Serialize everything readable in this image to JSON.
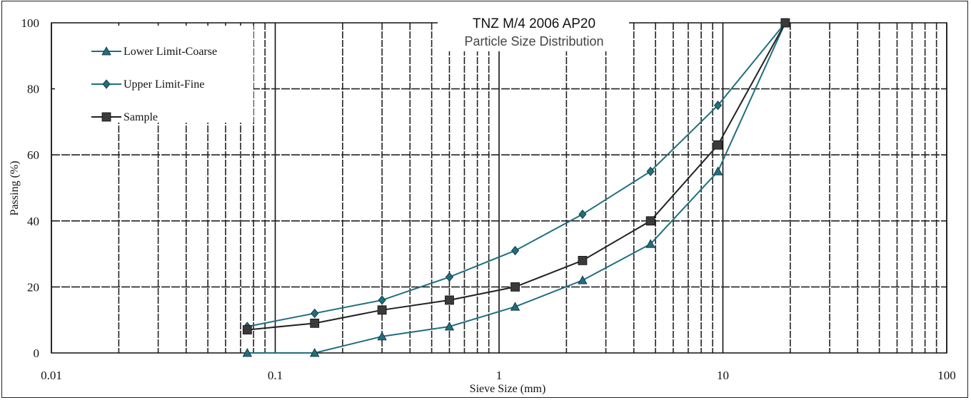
{
  "chart_data": {
    "type": "line",
    "title": "TNZ M/4 2006 AP20",
    "subtitle": "Particle Size Distribution",
    "xlabel": "Sieve Size (mm)",
    "ylabel": "Passing (%)",
    "xscale": "log",
    "xlim": [
      0.01,
      100
    ],
    "ylim": [
      0,
      100
    ],
    "xticks": [
      "0.01",
      "0.1",
      "1",
      "10",
      "100"
    ],
    "yticks": [
      "0",
      "20",
      "40",
      "60",
      "80",
      "100"
    ],
    "grid": true,
    "legend_position": "top-left",
    "series": [
      {
        "name": "Lower Limit-Coarse",
        "marker": "triangle",
        "color": "#1f6f7f",
        "x": [
          0.075,
          0.15,
          0.3,
          0.6,
          1.18,
          2.36,
          4.75,
          9.5,
          19
        ],
        "y": [
          0,
          0,
          5,
          8,
          14,
          22,
          33,
          55,
          100
        ]
      },
      {
        "name": "Upper Limit-Fine",
        "marker": "diamond",
        "color": "#1f6f7f",
        "x": [
          0.075,
          0.15,
          0.3,
          0.6,
          1.18,
          2.36,
          4.75,
          9.5,
          19
        ],
        "y": [
          8,
          12,
          16,
          23,
          31,
          42,
          55,
          75,
          100
        ]
      },
      {
        "name": "Sample",
        "marker": "square",
        "color": "#222222",
        "x": [
          0.075,
          0.15,
          0.3,
          0.6,
          1.18,
          2.36,
          4.75,
          9.5,
          19
        ],
        "y": [
          7,
          9,
          13,
          16,
          20,
          28,
          40,
          63,
          100
        ]
      }
    ]
  }
}
